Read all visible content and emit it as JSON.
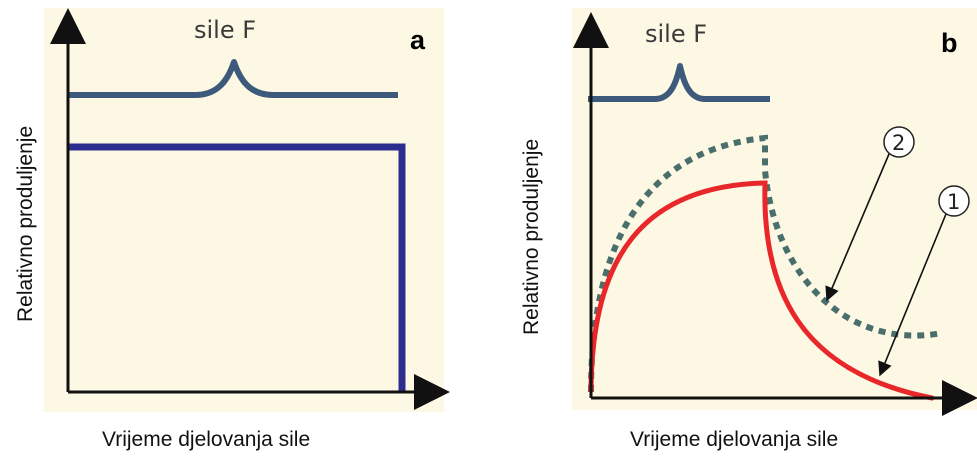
{
  "panel_a": {
    "letter": "a",
    "force_label": "sile F",
    "y_axis_label": "Relativno produljenje",
    "x_axis_label": "Vrijeme djelovanja sile"
  },
  "panel_b": {
    "letter": "b",
    "force_label": "sile F",
    "y_axis_label": "Relativno produljenje",
    "x_axis_label": "Vrijeme djelovanja sile",
    "curve_1_marker": "1",
    "curve_2_marker": "2"
  },
  "colors": {
    "background_panel": "#fdf8e4",
    "force_curve": "#3d5a7d",
    "elastic_curve": "#2d2d8f",
    "curve_1": "#e8272a",
    "curve_2": "#4a6e6b",
    "axes": "#111111"
  }
}
